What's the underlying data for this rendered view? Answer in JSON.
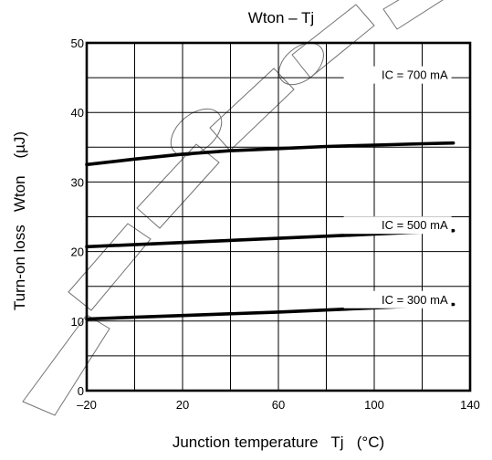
{
  "chart_data": {
    "type": "line",
    "title": "Wton – Tj",
    "xlabel": "Junction temperature   Tj   (°C)",
    "ylabel": "Turn-on loss   Wton    (µJ)",
    "xlim": [
      -20,
      140
    ],
    "ylim": [
      0,
      50
    ],
    "x_ticks": [
      "–20",
      "20",
      "60",
      "100",
      "140"
    ],
    "y_ticks": [
      "0",
      "10",
      "20",
      "30",
      "40",
      "50"
    ],
    "grid": true,
    "series": [
      {
        "name": "IC = 700 mA",
        "x": [
          -20,
          0,
          20,
          40,
          60,
          80,
          100,
          120,
          133
        ],
        "y": [
          32.5,
          33.3,
          34.0,
          34.5,
          34.8,
          35.1,
          35.3,
          35.5,
          35.6
        ]
      },
      {
        "name": "IC = 500 mA",
        "x": [
          -20,
          20,
          60,
          100,
          133
        ],
        "y": [
          20.7,
          21.3,
          21.9,
          22.5,
          23.0
        ]
      },
      {
        "name": "IC = 300 mA",
        "x": [
          -20,
          20,
          60,
          100,
          133
        ],
        "y": [
          10.3,
          10.8,
          11.3,
          11.9,
          12.4
        ]
      }
    ]
  }
}
